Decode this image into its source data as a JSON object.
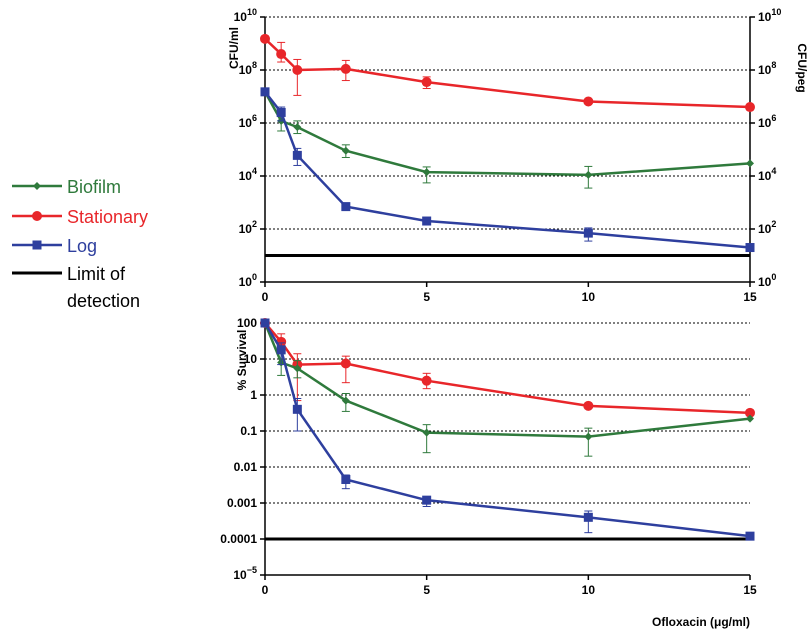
{
  "chart_data": [
    {
      "type": "line",
      "ylabel": "CFU/ml",
      "ylabel_right": "CFU/peg",
      "yscale": "log",
      "ylim": [
        1,
        10000000000.0
      ],
      "xlim": [
        0,
        15
      ],
      "xticks": [
        "0",
        "5",
        "10",
        "15"
      ],
      "yticks": [
        {
          "base": "10",
          "exp": "10"
        },
        {
          "base": "10",
          "exp": "8"
        },
        {
          "base": "10",
          "exp": "6"
        },
        {
          "base": "10",
          "exp": "4"
        },
        {
          "base": "10",
          "exp": "2"
        },
        {
          "base": "10",
          "exp": "0"
        }
      ],
      "grid": "dashed horizontal",
      "limit_of_detection": 10,
      "series": [
        {
          "name": "Stationary",
          "color": "#e8262a",
          "marker": "circle",
          "x": [
            0,
            0.5,
            1,
            2.5,
            5,
            10,
            15
          ],
          "y": [
            1500000000.0,
            400000000.0,
            100000000.0,
            110000000.0,
            35000000.0,
            6500000.0,
            4000000.0
          ],
          "err_hi": [
            null,
            1100000000.0,
            250000000.0,
            230000000.0,
            55000000.0,
            null,
            null
          ],
          "err_lo": [
            null,
            200000000.0,
            11000000.0,
            40000000.0,
            20000000.0,
            null,
            null
          ]
        },
        {
          "name": "Biofilm",
          "color": "#2f7a3c",
          "marker": "diamond",
          "x": [
            0,
            0.5,
            1,
            2.5,
            5,
            10,
            15
          ],
          "y": [
            15000000.0,
            1200000.0,
            700000.0,
            90000.0,
            14000.0,
            11000.0,
            30000.0
          ],
          "err_hi": [
            null,
            2500000.0,
            1200000.0,
            150000.0,
            22000.0,
            23000.0,
            null
          ],
          "err_lo": [
            null,
            500000.0,
            400000.0,
            50000.0,
            5500.0,
            3500.0,
            null
          ]
        },
        {
          "name": "Log",
          "color": "#2e3f9e",
          "marker": "square",
          "x": [
            0,
            0.5,
            1,
            2.5,
            5,
            10,
            15
          ],
          "y": [
            15000000.0,
            2500000.0,
            60000.0,
            700,
            200,
            70,
            20
          ],
          "err_hi": [
            null,
            4000000.0,
            110000.0,
            900,
            250,
            110,
            null
          ],
          "err_lo": [
            null,
            1200000.0,
            25000.0,
            500,
            170,
            35,
            null
          ]
        }
      ]
    },
    {
      "type": "line",
      "xlabel": "Ofloxacin (μg/ml)",
      "ylabel": "% Survival",
      "yscale": "log",
      "ylim": [
        1e-05,
        100
      ],
      "xlim": [
        0,
        15
      ],
      "xticks": [
        "0",
        "5",
        "10",
        "15"
      ],
      "yticks": [
        {
          "label": "100"
        },
        {
          "label": "10"
        },
        {
          "label": "1"
        },
        {
          "label": "0.1"
        },
        {
          "label": "0.01"
        },
        {
          "label": "0.001"
        },
        {
          "label": "0.0001"
        },
        {
          "base": "10",
          "exp": "−5"
        }
      ],
      "grid": "dashed horizontal",
      "limit_of_detection": 0.0001,
      "series": [
        {
          "name": "Stationary",
          "color": "#e8262a",
          "marker": "circle",
          "x": [
            0,
            0.5,
            1,
            2.5,
            5,
            10,
            15
          ],
          "y": [
            100,
            30,
            7,
            7.5,
            2.5,
            0.5,
            0.32
          ],
          "err_hi": [
            null,
            50,
            14,
            12,
            4,
            null,
            null
          ],
          "err_lo": [
            null,
            15,
            0.7,
            2.2,
            1.5,
            null,
            null
          ]
        },
        {
          "name": "Biofilm",
          "color": "#2f7a3c",
          "marker": "diamond",
          "x": [
            0,
            0.5,
            1,
            2.5,
            5,
            10,
            15
          ],
          "y": [
            100,
            8,
            5.5,
            0.7,
            0.09,
            0.07,
            0.22
          ],
          "err_hi": [
            null,
            14,
            9,
            1.1,
            0.15,
            0.12,
            null
          ],
          "err_lo": [
            null,
            3.5,
            3,
            0.35,
            0.025,
            0.02,
            null
          ]
        },
        {
          "name": "Log",
          "color": "#2e3f9e",
          "marker": "square",
          "x": [
            0,
            0.5,
            1,
            2.5,
            5,
            10,
            15
          ],
          "y": [
            100,
            18,
            0.4,
            0.0045,
            0.0012,
            0.0004,
            0.00012
          ],
          "err_hi": [
            null,
            28,
            0.8,
            0.006,
            0.0015,
            0.0006,
            null
          ],
          "err_lo": [
            null,
            7,
            0.1,
            0.0025,
            0.0008,
            0.00015,
            null
          ]
        }
      ]
    }
  ],
  "legend": {
    "placement": "left",
    "items": [
      {
        "label": "Biofilm",
        "color": "#2f7a3c",
        "marker": "diamond"
      },
      {
        "label": "Stationary",
        "color": "#e8262a",
        "marker": "circle"
      },
      {
        "label": "Log",
        "color": "#2e3f9e",
        "marker": "square"
      },
      {
        "label": "Limit of",
        "label2": "detection",
        "color": "#000000",
        "marker": "none"
      }
    ]
  }
}
